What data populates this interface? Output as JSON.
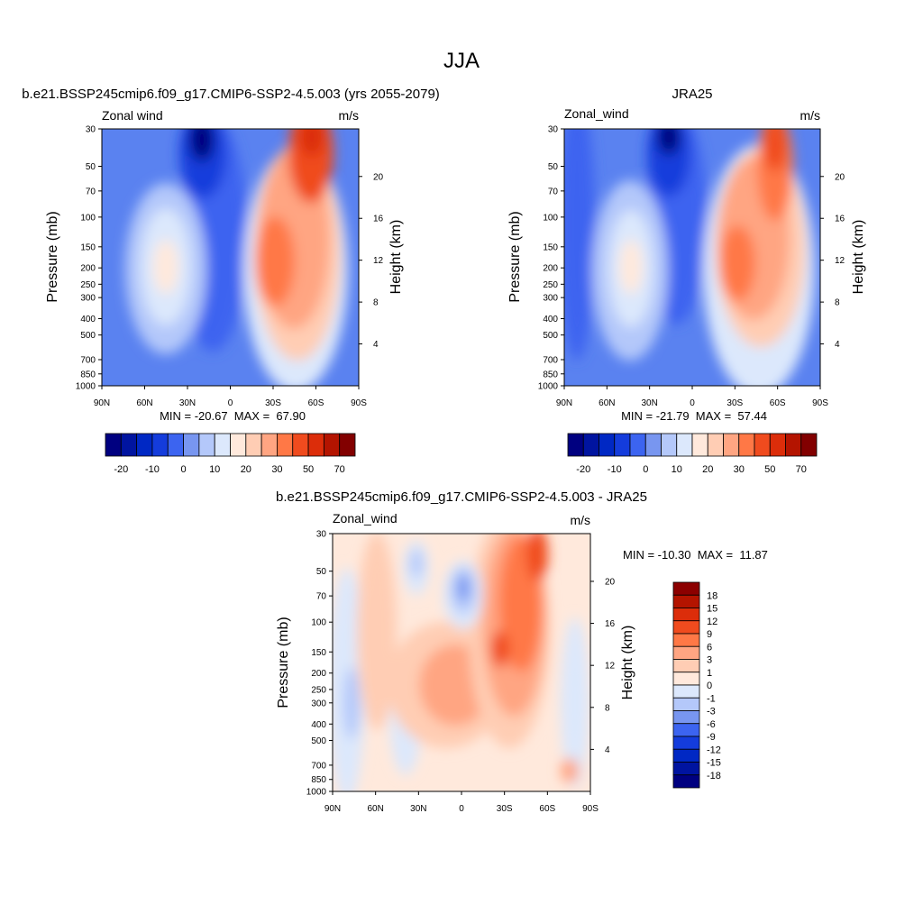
{
  "figure": {
    "title": "JJA"
  },
  "chart_data": [
    {
      "type": "heatmap",
      "title": "b.e21.BSSP245cmip6.f09_g17.CMIP6-SSP2-4.5.003 (yrs 2055-2079)",
      "variable": "Zonal wind",
      "units": "m/s",
      "ylabel": "Pressure (mb)",
      "ylabel_right": "Height (km)",
      "x_ticks": [
        "90N",
        "60N",
        "30N",
        "0",
        "30S",
        "60S",
        "90S"
      ],
      "y_ticks": [
        30,
        50,
        70,
        100,
        150,
        200,
        250,
        300,
        400,
        500,
        700,
        850,
        1000
      ],
      "y_ticks_right": [
        20,
        16,
        12,
        8,
        4
      ],
      "ylim": [
        1000,
        30
      ],
      "stats": "MIN = -20.67  MAX =  67.90",
      "colorbar": {
        "orientation": "horizontal",
        "labels": [
          "-20",
          "-10",
          "0",
          "10",
          "20",
          "30",
          "50",
          "70"
        ]
      },
      "features": [
        {
          "lat": -55,
          "p": 35,
          "value": 67.9
        },
        {
          "lat": -35,
          "p": 200,
          "value": 45
        },
        {
          "lat": -15,
          "p": 35,
          "value": -20.67
        },
        {
          "lat": 45,
          "p": 200,
          "value": 15
        }
      ]
    },
    {
      "type": "heatmap",
      "title": "JRA25",
      "variable": "Zonal_wind",
      "units": "m/s",
      "ylabel": "Pressure (mb)",
      "ylabel_right": "Height (km)",
      "x_ticks": [
        "90N",
        "60N",
        "30N",
        "0",
        "30S",
        "60S",
        "90S"
      ],
      "y_ticks": [
        30,
        50,
        70,
        100,
        150,
        200,
        250,
        300,
        400,
        500,
        700,
        850,
        1000
      ],
      "y_ticks_right": [
        20,
        16,
        12,
        8,
        4
      ],
      "ylim": [
        1000,
        30
      ],
      "stats": "MIN = -21.79  MAX =  57.44",
      "colorbar": {
        "orientation": "horizontal",
        "labels": [
          "-20",
          "-10",
          "0",
          "10",
          "20",
          "30",
          "50",
          "70"
        ]
      },
      "features": [
        {
          "lat": -55,
          "p": 40,
          "value": 57.44
        },
        {
          "lat": -32,
          "p": 200,
          "value": 40
        },
        {
          "lat": -15,
          "p": 35,
          "value": -21.79
        },
        {
          "lat": 45,
          "p": 200,
          "value": 18
        }
      ]
    },
    {
      "type": "heatmap",
      "title": "b.e21.BSSP245cmip6.f09_g17.CMIP6-SSP2-4.5.003 - JRA25",
      "variable": "Zonal_wind",
      "units": "m/s",
      "ylabel": "Pressure (mb)",
      "ylabel_right": "Height (km)",
      "x_ticks": [
        "90N",
        "60N",
        "30N",
        "0",
        "30S",
        "60S",
        "90S"
      ],
      "y_ticks": [
        30,
        50,
        70,
        100,
        150,
        200,
        250,
        300,
        400,
        500,
        700,
        850,
        1000
      ],
      "y_ticks_right": [
        20,
        16,
        12,
        8,
        4
      ],
      "ylim": [
        1000,
        30
      ],
      "stats": "MIN = -10.30  MAX =  11.87",
      "colorbar": {
        "orientation": "vertical",
        "labels": [
          "18",
          "15",
          "12",
          "9",
          "6",
          "3",
          "1",
          "0",
          "-1",
          "-3",
          "-6",
          "-9",
          "-12",
          "-15",
          "-18"
        ]
      },
      "features": [
        {
          "lat": -50,
          "p": 60,
          "value": 11.87
        },
        {
          "lat": -30,
          "p": 150,
          "value": 8
        },
        {
          "lat": 0,
          "p": 65,
          "value": -10.3
        },
        {
          "lat": 20,
          "p": 100,
          "value": -3
        }
      ]
    }
  ],
  "palettes": {
    "main": [
      "#000080",
      "#0014a0",
      "#0028c4",
      "#143cdc",
      "#3c64f0",
      "#7896f0",
      "#b4c8fa",
      "#dce8fc",
      "#ffe9dc",
      "#ffcdb4",
      "#ffa582",
      "#ff7846",
      "#f04b1e",
      "#dc2d0a",
      "#b41400",
      "#820000"
    ],
    "diff": [
      "#8c0000",
      "#b41400",
      "#dc2d0a",
      "#f04b1e",
      "#ff7846",
      "#ffa582",
      "#ffcdb4",
      "#ffe9dc",
      "#dce8fc",
      "#b4c8fa",
      "#7896f0",
      "#3c64f0",
      "#143cdc",
      "#0028c4",
      "#0014a0",
      "#000080"
    ]
  }
}
